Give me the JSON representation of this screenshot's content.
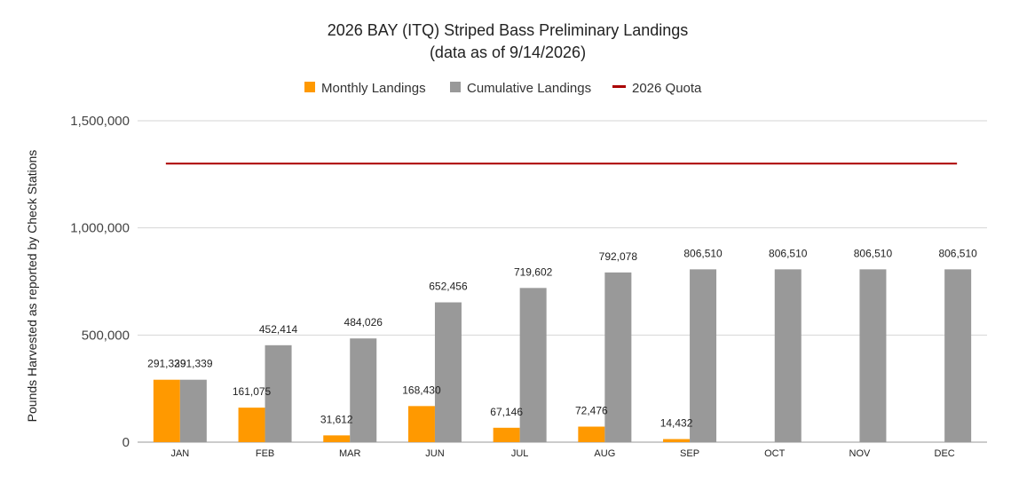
{
  "chart_data": {
    "type": "bar",
    "title": "2026 BAY (ITQ) Striped Bass Preliminary Landings",
    "subtitle": "(data as of 9/14/2026)",
    "ylabel": "Pounds Harvested as reported by Check Stations",
    "xlabel": "",
    "ylim": [
      0,
      1500000
    ],
    "yticks": [
      0,
      500000,
      1000000,
      1500000
    ],
    "ytick_labels": [
      "0",
      "500,000",
      "1,000,000",
      "1,500,000"
    ],
    "grid": true,
    "legend_position": "top",
    "categories": [
      "JAN",
      "FEB",
      "MAR",
      "JUN",
      "JUL",
      "AUG",
      "SEP",
      "OCT",
      "NOV",
      "DEC"
    ],
    "series": [
      {
        "name": "Monthly Landings",
        "kind": "bar",
        "color": "#FF9900",
        "values": [
          291339,
          161075,
          31612,
          168430,
          67146,
          72476,
          14432,
          null,
          null,
          null
        ],
        "labels": [
          "291,339",
          "161,075",
          "31,612",
          "168,430",
          "67,146",
          "72,476",
          "14,432",
          "",
          "",
          ""
        ]
      },
      {
        "name": "Cumulative Landings",
        "kind": "bar",
        "color": "#999999",
        "values": [
          291339,
          452414,
          484026,
          652456,
          719602,
          792078,
          806510,
          806510,
          806510,
          806510
        ],
        "labels": [
          "291,339",
          "452,414",
          "484,026",
          "652,456",
          "719,602",
          "792,078",
          "806,510",
          "806,510",
          "806,510",
          "806,510"
        ]
      },
      {
        "name": "2026 Quota",
        "kind": "line",
        "color": "#AA0000",
        "value": 1300000
      }
    ]
  }
}
